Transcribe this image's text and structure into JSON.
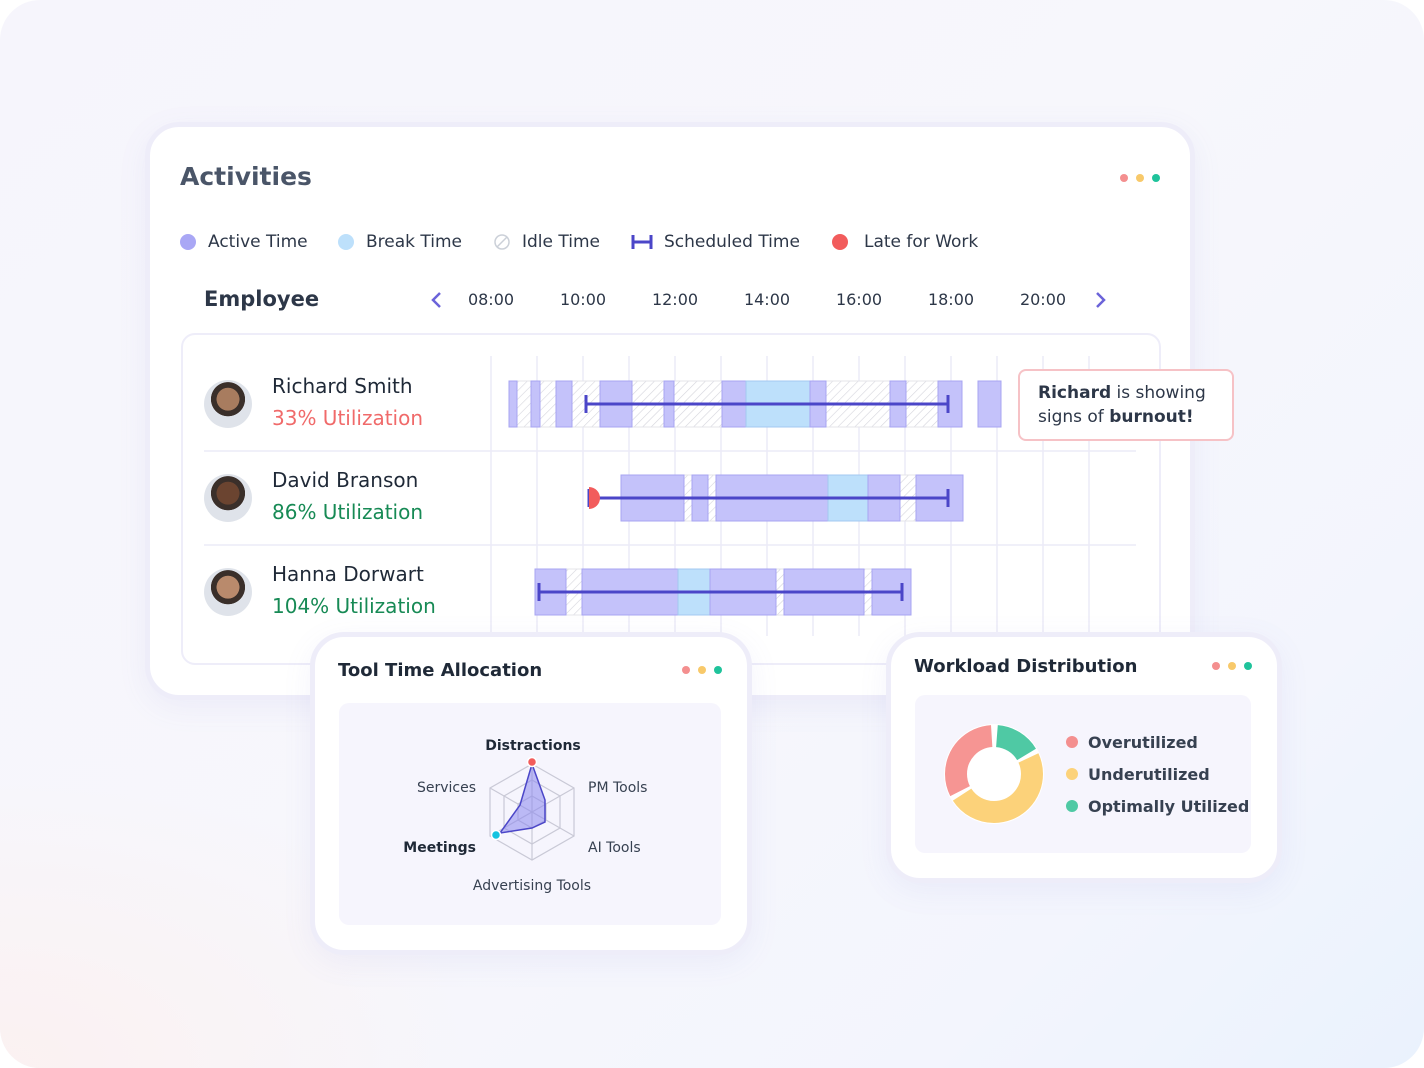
{
  "activities": {
    "title": "Activities",
    "legend": [
      "Active Time",
      "Break Time",
      "Idle Time",
      "Scheduled Time",
      "Late for Work"
    ],
    "column_header": "Employee",
    "times": [
      "08:00",
      "10:00",
      "12:00",
      "14:00",
      "16:00",
      "18:00",
      "20:00"
    ],
    "employees": [
      {
        "name": "Richard Smith",
        "utilization": "33% Utilization"
      },
      {
        "name": "David Branson",
        "utilization": "86% Utilization"
      },
      {
        "name": "Hanna Dorwart",
        "utilization": "104% Utilization"
      }
    ],
    "callout": {
      "name": "Richard",
      "line1": "is showing",
      "line2": "signs of",
      "emphasis": "burnout!"
    }
  },
  "tool_time": {
    "title": "Tool Time Allocation",
    "axes": [
      "Distractions",
      "PM Tools",
      "AI Tools",
      "Advertising Tools",
      "Meetings",
      "Services"
    ]
  },
  "workload": {
    "title": "Workload Distribution",
    "legend": [
      "Overutilized",
      "Underutilized",
      "Optimally Utilized"
    ]
  }
}
